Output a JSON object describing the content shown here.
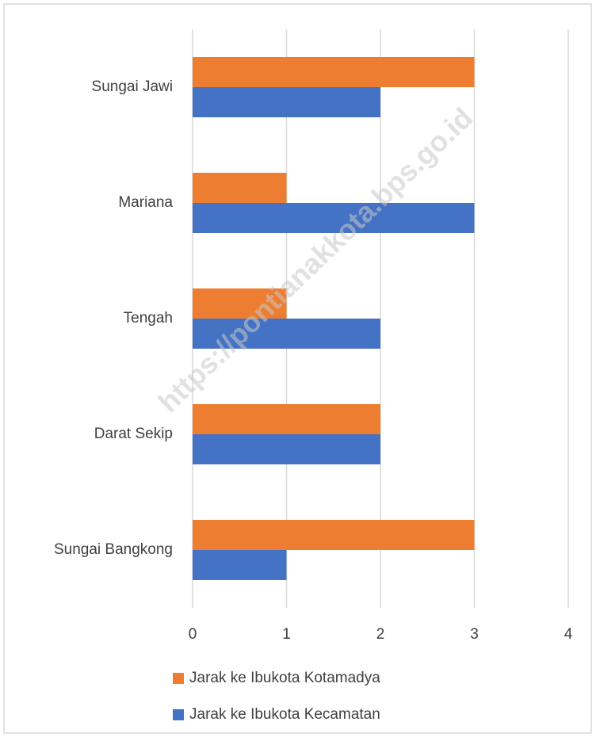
{
  "chart_data": {
    "type": "hbar",
    "categories": [
      "Sungai Jawi",
      "Mariana",
      "Tengah",
      "Darat Sekip",
      "Sungai Bangkong"
    ],
    "series": [
      {
        "name": "Jarak ke Ibukota Kotamadya",
        "color": "#ed7d31",
        "values": [
          3,
          1,
          1,
          2,
          3
        ]
      },
      {
        "name": "Jarak ke Ibukota Kecamatan",
        "color": "#4472c4",
        "values": [
          2,
          3,
          2,
          2,
          1
        ]
      }
    ],
    "xlim": [
      0,
      4
    ],
    "xticks": [
      0,
      1,
      2,
      3,
      4
    ],
    "grid": true,
    "legend": "bottom",
    "watermark": "https://pontianakkota.bps.go.id"
  }
}
